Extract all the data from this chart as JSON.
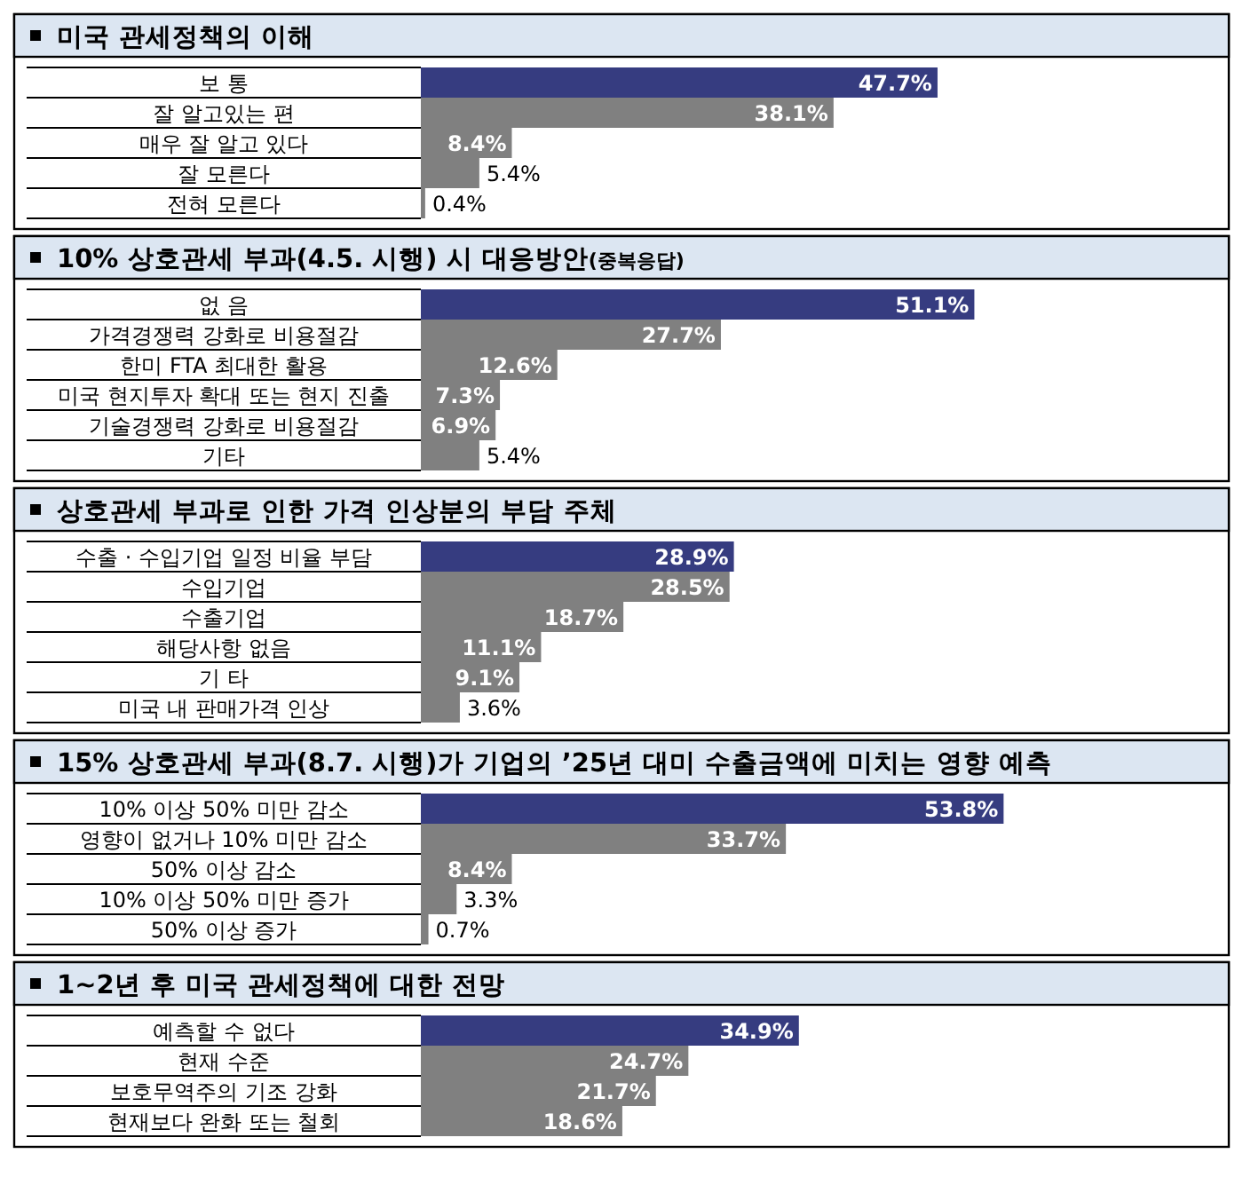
{
  "chart_data": [
    {
      "type": "bar",
      "orientation": "horizontal",
      "title": "미국 관세정책의 이해",
      "categories": [
        "보 통",
        "잘 알고있는 편",
        "매우 잘 알고 있다",
        "잘 모른다",
        "전혀 모른다"
      ],
      "values": [
        47.7,
        38.1,
        8.4,
        5.4,
        0.4
      ],
      "value_labels": [
        "47.7%",
        "38.1%",
        "8.4%",
        "5.4%",
        "0.4%"
      ],
      "colors": [
        "#363c80",
        "#808080",
        "#808080",
        "#808080",
        "#808080"
      ]
    },
    {
      "type": "bar",
      "orientation": "horizontal",
      "title": "10% 상호관세 부과(4.5. 시행) 시 대응방안",
      "subtitle": "(중복응답)",
      "categories": [
        "없 음",
        "가격경쟁력 강화로 비용절감",
        "한미 FTA 최대한 활용",
        "미국 현지투자 확대 또는 현지 진출",
        "기술경쟁력 강화로 비용절감",
        "기타"
      ],
      "values": [
        51.1,
        27.7,
        12.6,
        7.3,
        6.9,
        5.4
      ],
      "value_labels": [
        "51.1%",
        "27.7%",
        "12.6%",
        "7.3%",
        "6.9%",
        "5.4%"
      ],
      "colors": [
        "#363c80",
        "#808080",
        "#808080",
        "#808080",
        "#808080",
        "#808080"
      ]
    },
    {
      "type": "bar",
      "orientation": "horizontal",
      "title": "상호관세 부과로 인한 가격 인상분의 부담 주체",
      "categories": [
        "수출 · 수입기업 일정 비율 부담",
        "수입기업",
        "수출기업",
        "해당사항 없음",
        "기 타",
        "미국 내 판매가격 인상"
      ],
      "values": [
        28.9,
        28.5,
        18.7,
        11.1,
        9.1,
        3.6
      ],
      "value_labels": [
        "28.9%",
        "28.5%",
        "18.7%",
        "11.1%",
        "9.1%",
        "3.6%"
      ],
      "colors": [
        "#363c80",
        "#808080",
        "#808080",
        "#808080",
        "#808080",
        "#808080"
      ]
    },
    {
      "type": "bar",
      "orientation": "horizontal",
      "title": "15% 상호관세 부과(8.7. 시행)가 기업의 ’25년 대미 수출금액에 미치는 영향 예측",
      "categories": [
        "10% 이상 50% 미만 감소",
        "영향이 없거나 10% 미만 감소",
        "50% 이상 감소",
        "10% 이상 50% 미만 증가",
        "50% 이상 증가"
      ],
      "values": [
        53.8,
        33.7,
        8.4,
        3.3,
        0.7
      ],
      "value_labels": [
        "53.8%",
        "33.7%",
        "8.4%",
        "3.3%",
        "0.7%"
      ],
      "colors": [
        "#363c80",
        "#808080",
        "#808080",
        "#808080",
        "#808080"
      ]
    },
    {
      "type": "bar",
      "orientation": "horizontal",
      "title": "1~2년 후 미국 관세정책에 대한 전망",
      "categories": [
        "예측할 수 없다",
        "현재 수준",
        "보호무역주의 기조 강화",
        "현재보다 완화 또는 철회"
      ],
      "values": [
        34.9,
        24.7,
        21.7,
        18.6
      ],
      "value_labels": [
        "34.9%",
        "24.7%",
        "21.7%",
        "18.6%"
      ],
      "colors": [
        "#363c80",
        "#808080",
        "#808080",
        "#808080"
      ]
    }
  ]
}
